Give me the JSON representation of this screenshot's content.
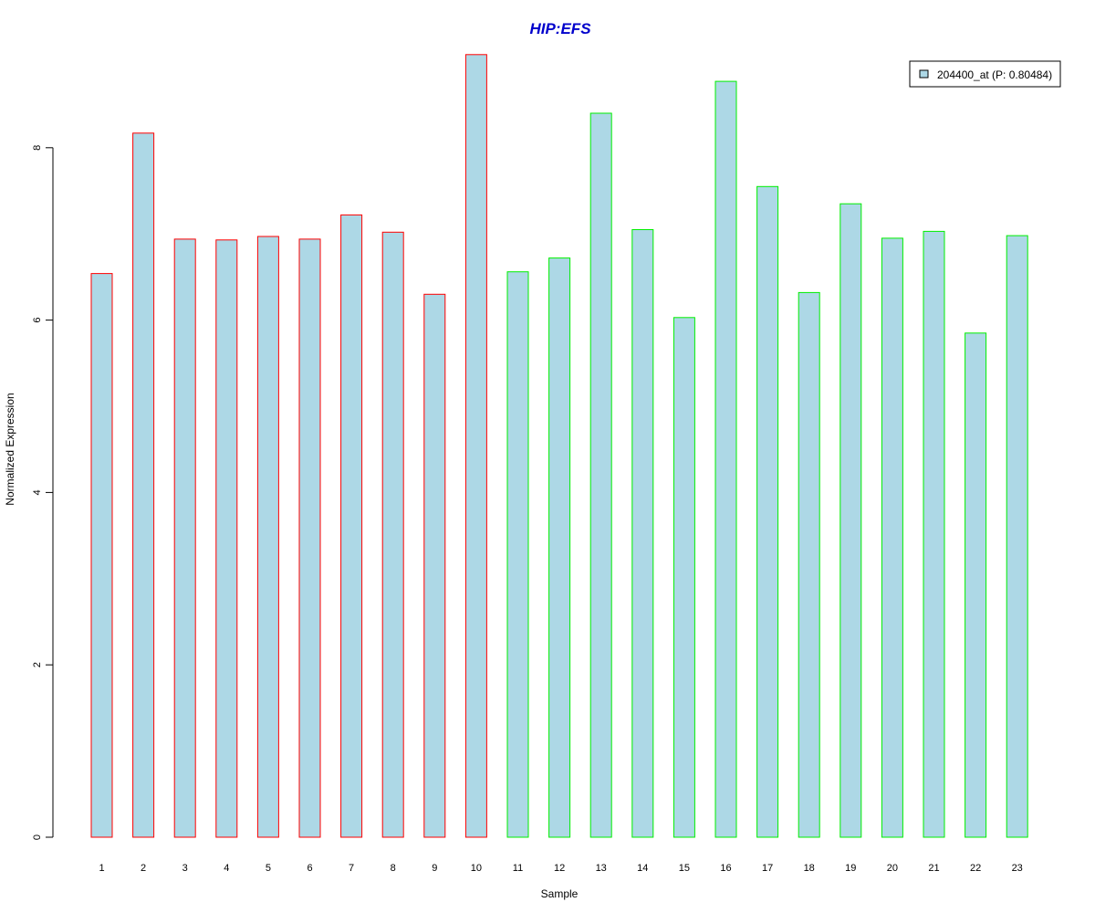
{
  "chart_data": {
    "type": "bar",
    "title": "HIP:EFS",
    "xlabel": "Sample",
    "ylabel": "Normalized Expression",
    "categories": [
      "1",
      "2",
      "3",
      "4",
      "5",
      "6",
      "7",
      "8",
      "9",
      "10",
      "11",
      "12",
      "13",
      "14",
      "15",
      "16",
      "17",
      "18",
      "19",
      "20",
      "21",
      "22",
      "23"
    ],
    "series": [
      {
        "name": "204400_at (P: 0.80484)",
        "values": [
          6.54,
          8.17,
          6.94,
          6.93,
          6.97,
          6.94,
          7.22,
          7.02,
          6.3,
          9.08,
          6.56,
          6.72,
          8.4,
          7.05,
          6.03,
          8.77,
          7.55,
          6.32,
          7.35,
          6.95,
          7.03,
          5.85,
          6.98
        ]
      }
    ],
    "yticks": [
      "0",
      "2",
      "4",
      "6",
      "8"
    ],
    "ylim": [
      0,
      9.1
    ],
    "groups": [
      {
        "samples": [
          "1",
          "2",
          "3",
          "4",
          "5",
          "6",
          "7",
          "8",
          "9",
          "10"
        ],
        "border_color": "#ff0000"
      },
      {
        "samples": [
          "11",
          "12",
          "13",
          "14",
          "15",
          "16",
          "17",
          "18",
          "19",
          "20",
          "21",
          "22",
          "23"
        ],
        "border_color": "#00ee00"
      }
    ],
    "fill_color": "#add8e6",
    "title_color": "#0000cc",
    "legend_position": "top-right",
    "grid": false
  }
}
